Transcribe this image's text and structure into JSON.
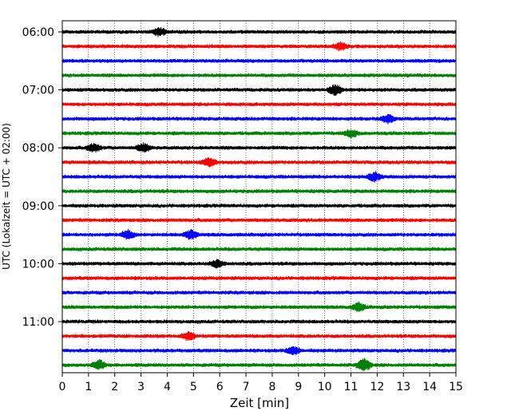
{
  "chart_data": {
    "type": "line",
    "subtype": "helicorder",
    "xlabel": "Zeit  [min]",
    "ylabel": "UTC (Lokalzeit = UTC + 02:00)",
    "xlim": [
      0,
      15
    ],
    "x_ticks": [
      0,
      1,
      2,
      3,
      4,
      5,
      6,
      7,
      8,
      9,
      10,
      11,
      12,
      13,
      14,
      15
    ],
    "y_tick_labels": [
      "06:00",
      "07:00",
      "08:00",
      "09:00",
      "10:00",
      "11:00"
    ],
    "trace_start_times": [
      "06:00",
      "06:15",
      "06:30",
      "06:45",
      "07:00",
      "07:15",
      "07:30",
      "07:45",
      "08:00",
      "08:15",
      "08:30",
      "08:45",
      "09:00",
      "09:15",
      "09:30",
      "09:45",
      "10:00",
      "10:15",
      "10:30",
      "10:45",
      "11:00",
      "11:15",
      "11:30",
      "11:45"
    ],
    "trace_colors": [
      "#000000",
      "#ff0000",
      "#0000ff",
      "#008000"
    ],
    "grid": "vertical dotted lines at each minute",
    "bursts": [
      {
        "trace": 0,
        "minute": 3.7,
        "amp": 1.6
      },
      {
        "trace": 1,
        "minute": 10.6,
        "amp": 1.4
      },
      {
        "trace": 4,
        "minute": 10.4,
        "amp": 1.9
      },
      {
        "trace": 6,
        "minute": 12.4,
        "amp": 1.5
      },
      {
        "trace": 7,
        "minute": 11.0,
        "amp": 1.4
      },
      {
        "trace": 8,
        "minute": 1.2,
        "amp": 1.6
      },
      {
        "trace": 8,
        "minute": 3.1,
        "amp": 1.6
      },
      {
        "trace": 9,
        "minute": 5.6,
        "amp": 1.5
      },
      {
        "trace": 10,
        "minute": 11.9,
        "amp": 1.7
      },
      {
        "trace": 14,
        "minute": 2.5,
        "amp": 1.6
      },
      {
        "trace": 14,
        "minute": 4.9,
        "amp": 1.7
      },
      {
        "trace": 16,
        "minute": 5.9,
        "amp": 1.4
      },
      {
        "trace": 19,
        "minute": 11.3,
        "amp": 1.5
      },
      {
        "trace": 21,
        "minute": 4.8,
        "amp": 1.5
      },
      {
        "trace": 22,
        "minute": 8.8,
        "amp": 1.6
      },
      {
        "trace": 23,
        "minute": 1.4,
        "amp": 1.7
      },
      {
        "trace": 23,
        "minute": 11.5,
        "amp": 2.4
      }
    ]
  }
}
